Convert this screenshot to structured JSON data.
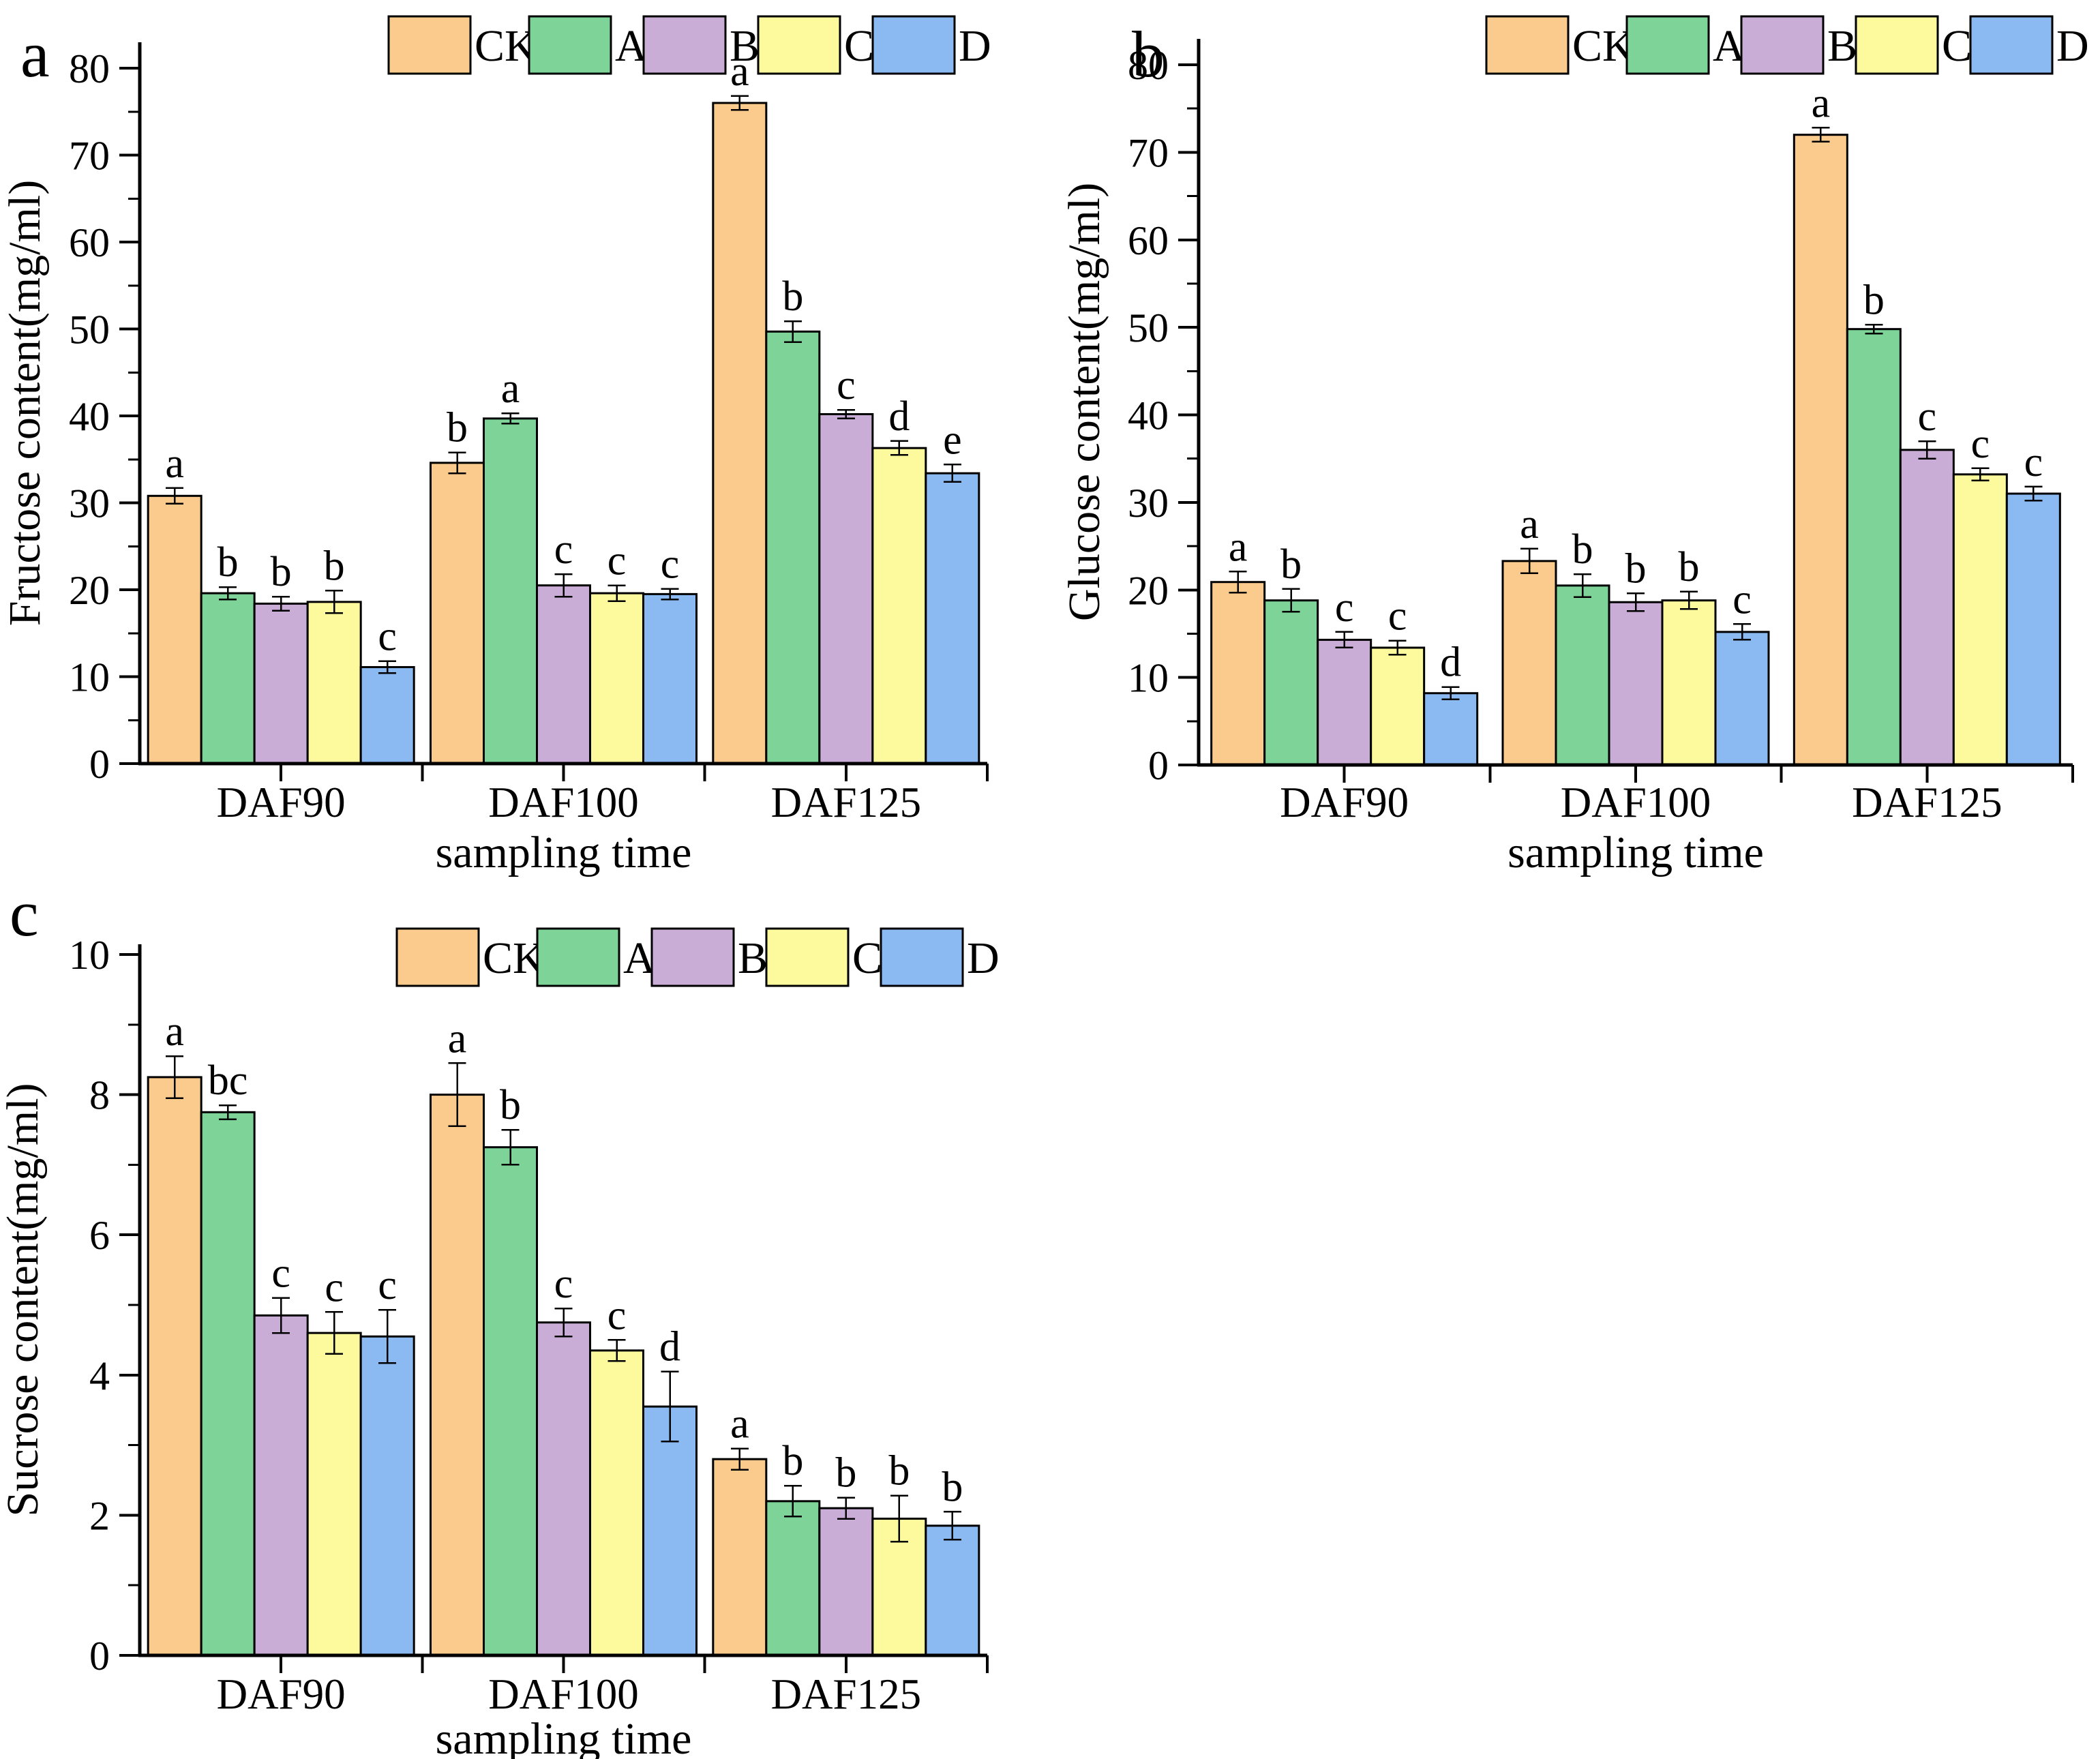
{
  "figure": {
    "background": "#ffffff"
  },
  "legend": {
    "labels": [
      "CK",
      "A",
      "B",
      "C",
      "D"
    ],
    "colors": {
      "CK": "#FACB8D",
      "A": "#7DD398",
      "B": "#CAADD6",
      "C": "#FDFA9E",
      "D": "#8ABAF1"
    },
    "swatch_stroke": "#000000"
  },
  "chart_data": [
    {
      "id": "a",
      "panel_letter": "a",
      "type": "bar",
      "ylabel": "Fructose content(mg/ml)",
      "xlabel": "sampling time",
      "ylim": [
        0,
        83
      ],
      "yticks": [
        0,
        10,
        20,
        30,
        40,
        50,
        60,
        70,
        80
      ],
      "minor_step": 5,
      "grid": "off",
      "legend_position": "top",
      "error_bars": true,
      "categories": [
        "DAF90",
        "DAF100",
        "DAF125"
      ],
      "series": [
        {
          "name": "CK",
          "values": [
            30.8,
            34.6,
            76.0
          ],
          "errors": [
            0.9,
            1.2,
            0.8
          ],
          "letters": [
            "a",
            "b",
            "a"
          ]
        },
        {
          "name": "A",
          "values": [
            19.6,
            39.7,
            49.7
          ],
          "errors": [
            0.7,
            0.6,
            1.2
          ],
          "letters": [
            "b",
            "a",
            "b"
          ]
        },
        {
          "name": "B",
          "values": [
            18.4,
            20.5,
            40.2
          ],
          "errors": [
            0.8,
            1.3,
            0.5
          ],
          "letters": [
            "b",
            "c",
            "c"
          ]
        },
        {
          "name": "C",
          "values": [
            18.6,
            19.6,
            36.3
          ],
          "errors": [
            1.3,
            0.9,
            0.8
          ],
          "letters": [
            "b",
            "c",
            "d"
          ]
        },
        {
          "name": "D",
          "values": [
            11.1,
            19.5,
            33.4
          ],
          "errors": [
            0.7,
            0.6,
            1.0
          ],
          "letters": [
            "c",
            "c",
            "e"
          ]
        }
      ]
    },
    {
      "id": "b",
      "panel_letter": "b",
      "type": "bar",
      "ylabel": "Glucose content(mg/ml)",
      "xlabel": "sampling time",
      "ylim": [
        0,
        83
      ],
      "yticks": [
        0,
        10,
        20,
        30,
        40,
        50,
        60,
        70,
        80
      ],
      "minor_step": 5,
      "grid": "off",
      "legend_position": "top",
      "error_bars": true,
      "categories": [
        "DAF90",
        "DAF100",
        "DAF125"
      ],
      "series": [
        {
          "name": "CK",
          "values": [
            20.9,
            23.3,
            72.0
          ],
          "errors": [
            1.2,
            1.4,
            0.8
          ],
          "letters": [
            "a",
            "a",
            "a"
          ]
        },
        {
          "name": "A",
          "values": [
            18.8,
            20.5,
            49.8
          ],
          "errors": [
            1.3,
            1.3,
            0.5
          ],
          "letters": [
            "b",
            "b",
            "b"
          ]
        },
        {
          "name": "B",
          "values": [
            14.3,
            18.6,
            36.0
          ],
          "errors": [
            0.9,
            1.0,
            1.0
          ],
          "letters": [
            "c",
            "b",
            "c"
          ]
        },
        {
          "name": "C",
          "values": [
            13.4,
            18.8,
            33.2
          ],
          "errors": [
            0.8,
            1.0,
            0.7
          ],
          "letters": [
            "c",
            "b",
            "c"
          ]
        },
        {
          "name": "D",
          "values": [
            8.2,
            15.2,
            31.0
          ],
          "errors": [
            0.7,
            0.9,
            0.8
          ],
          "letters": [
            "d",
            "c",
            "c"
          ]
        }
      ]
    },
    {
      "id": "c",
      "panel_letter": "c",
      "type": "bar",
      "ylabel": "Sucrose content(mg/ml)",
      "xlabel": "sampling time",
      "ylim": [
        0,
        10.15
      ],
      "yticks": [
        0,
        2,
        4,
        6,
        8,
        10
      ],
      "minor_step": 1,
      "grid": "off",
      "legend_position": "top",
      "error_bars": true,
      "categories": [
        "DAF90",
        "DAF100",
        "DAF125"
      ],
      "series": [
        {
          "name": "CK",
          "values": [
            8.25,
            8.0,
            2.8
          ],
          "errors": [
            0.3,
            0.45,
            0.15
          ],
          "letters": [
            "a",
            "a",
            "a"
          ]
        },
        {
          "name": "A",
          "values": [
            7.75,
            7.25,
            2.2
          ],
          "errors": [
            0.1,
            0.25,
            0.22
          ],
          "letters": [
            "bc",
            "b",
            "b"
          ]
        },
        {
          "name": "B",
          "values": [
            4.85,
            4.75,
            2.1
          ],
          "errors": [
            0.25,
            0.2,
            0.15
          ],
          "letters": [
            "c",
            "c",
            "b"
          ]
        },
        {
          "name": "C",
          "values": [
            4.6,
            4.35,
            1.95
          ],
          "errors": [
            0.3,
            0.15,
            0.33
          ],
          "letters": [
            "c",
            "c",
            "b"
          ]
        },
        {
          "name": "D",
          "values": [
            4.55,
            3.55,
            1.85
          ],
          "errors": [
            0.38,
            0.5,
            0.2
          ],
          "letters": [
            "c",
            "d",
            "b"
          ]
        }
      ]
    }
  ]
}
